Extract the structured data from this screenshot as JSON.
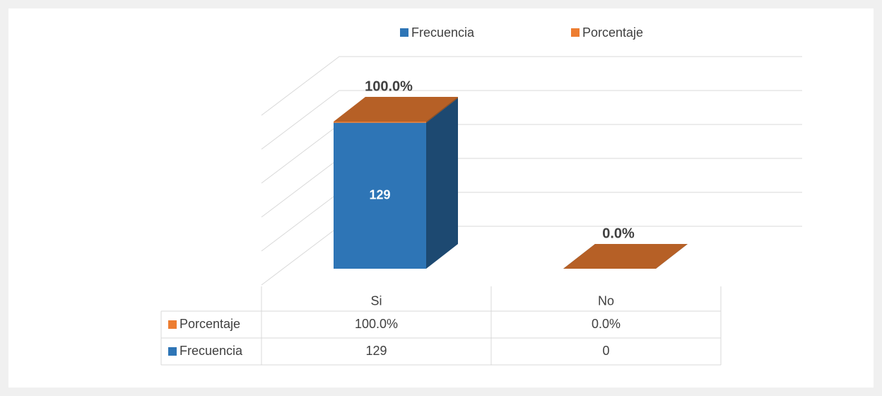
{
  "chart_data": {
    "type": "bar3d-stacked",
    "categories": [
      "Si",
      "No"
    ],
    "series": [
      {
        "name": "Frecuencia",
        "color": "#2e75b6",
        "values": [
          129,
          0
        ]
      },
      {
        "name": "Porcentaje",
        "color": "#ed7d31",
        "values": [
          1,
          0
        ],
        "value_labels": [
          "100.0%",
          "0.0%"
        ]
      }
    ],
    "ylim": [
      0,
      150
    ],
    "yticks": [
      0,
      30,
      60,
      90,
      120,
      150
    ],
    "grid": true,
    "legend": "top",
    "data_table": true
  }
}
